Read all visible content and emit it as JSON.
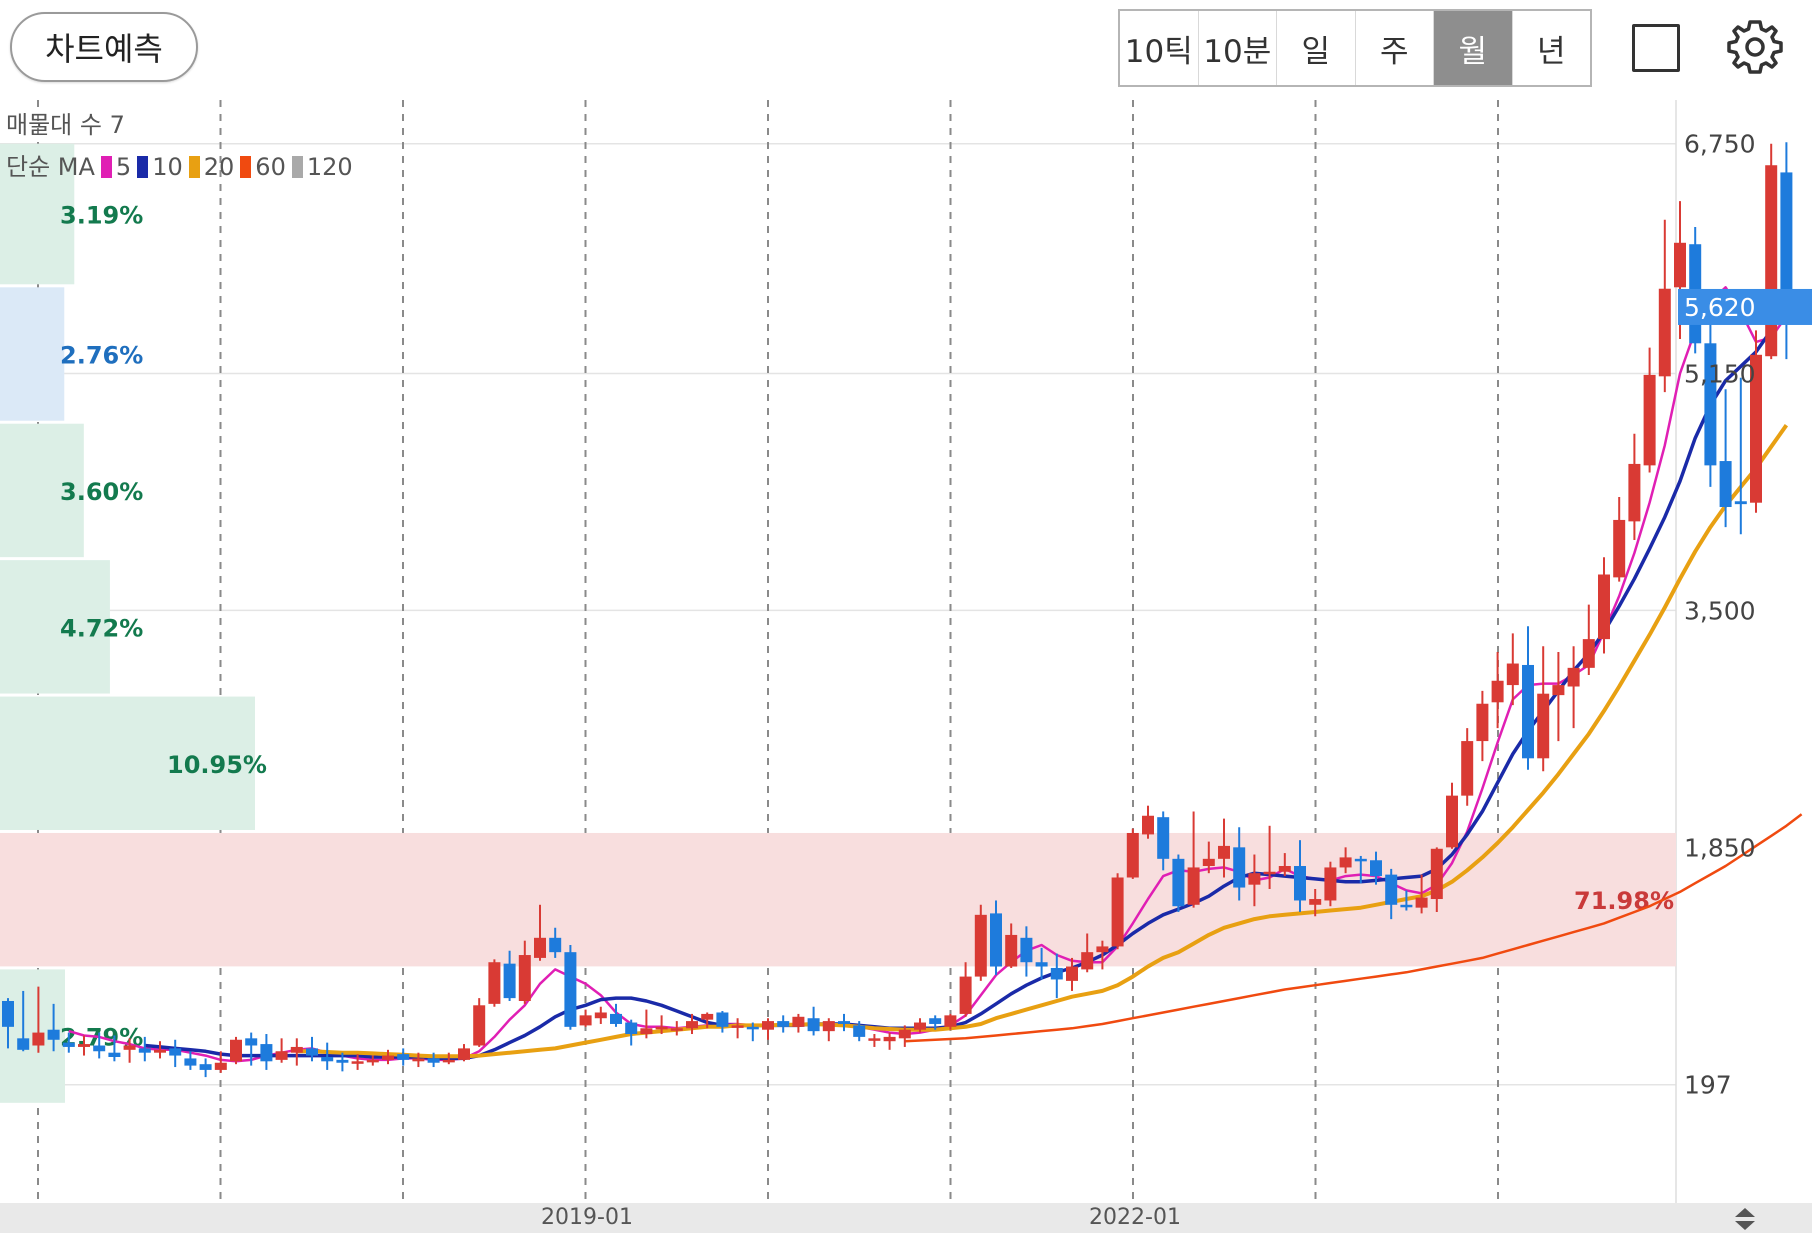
{
  "toolbar": {
    "predict_label": "차트예측",
    "periods": [
      "10틱",
      "10분",
      "일",
      "주",
      "월",
      "년"
    ],
    "active_period": "월"
  },
  "legend": {
    "volume_profile_label": "매물대 수 7",
    "ma_label": "단순 MA",
    "ma_items": [
      {
        "period": "5",
        "color": "#e01fb4"
      },
      {
        "period": "10",
        "color": "#1a2aa8"
      },
      {
        "period": "20",
        "color": "#e8a012"
      },
      {
        "period": "60",
        "color": "#f04a10"
      },
      {
        "period": "120",
        "color": "#a9a9a9"
      }
    ]
  },
  "chart_data": {
    "type": "candlestick",
    "y_axis_ticks": [
      "6,750",
      "5,150",
      "3,500",
      "1,850",
      "197"
    ],
    "y_axis_tick_values": [
      6750,
      5150,
      3500,
      1850,
      197
    ],
    "current_price_label": "5,620",
    "current_price": 5620,
    "x_axis_labels": [
      "2019-01",
      "2022-01"
    ],
    "colors": {
      "up": "#d93a34",
      "down": "#1e7bdc",
      "current_price_bg": "#3a8de6"
    },
    "volume_profile": [
      {
        "price_low": 5750,
        "price_high": 6750,
        "percent": "3.19%",
        "value": 3.19,
        "style": "green"
      },
      {
        "price_low": 4800,
        "price_high": 5750,
        "percent": "2.76%",
        "value": 2.76,
        "style": "blue"
      },
      {
        "price_low": 3850,
        "price_high": 4800,
        "percent": "3.60%",
        "value": 3.6,
        "style": "green"
      },
      {
        "price_low": 2900,
        "price_high": 3850,
        "percent": "4.72%",
        "value": 4.72,
        "style": "green"
      },
      {
        "price_low": 1950,
        "price_high": 2900,
        "percent": "10.95%",
        "value": 10.95,
        "style": "green"
      },
      {
        "price_low": 1000,
        "price_high": 1950,
        "percent": "71.98%",
        "value": 71.98,
        "style": "red"
      },
      {
        "price_low": 50,
        "price_high": 1000,
        "percent": "2.79%",
        "value": 2.79,
        "style": "green"
      }
    ],
    "candles": [
      [
        780,
        600,
        800,
        450
      ],
      [
        520,
        440,
        850,
        430
      ],
      [
        470,
        560,
        880,
        420
      ],
      [
        580,
        510,
        760,
        430
      ],
      [
        490,
        460,
        560,
        420
      ],
      [
        460,
        480,
        540,
        400
      ],
      [
        470,
        430,
        560,
        380
      ],
      [
        420,
        390,
        540,
        360
      ],
      [
        440,
        470,
        520,
        350
      ],
      [
        450,
        420,
        530,
        360
      ],
      [
        420,
        440,
        500,
        380
      ],
      [
        450,
        400,
        510,
        320
      ],
      [
        380,
        330,
        430,
        300
      ],
      [
        340,
        300,
        380,
        250
      ],
      [
        300,
        350,
        430,
        280
      ],
      [
        360,
        510,
        530,
        340
      ],
      [
        520,
        470,
        560,
        330
      ],
      [
        480,
        360,
        550,
        300
      ],
      [
        370,
        430,
        520,
        350
      ],
      [
        420,
        460,
        520,
        330
      ],
      [
        450,
        400,
        530,
        360
      ],
      [
        390,
        360,
        490,
        300
      ],
      [
        370,
        350,
        420,
        290
      ],
      [
        350,
        360,
        410,
        300
      ],
      [
        355,
        370,
        400,
        330
      ],
      [
        370,
        400,
        440,
        340
      ],
      [
        410,
        370,
        450,
        330
      ],
      [
        360,
        380,
        420,
        320
      ],
      [
        380,
        350,
        420,
        320
      ],
      [
        360,
        370,
        420,
        340
      ],
      [
        370,
        450,
        480,
        360
      ],
      [
        470,
        750,
        800,
        460
      ],
      [
        760,
        1050,
        1070,
        740
      ],
      [
        1040,
        800,
        1130,
        780
      ],
      [
        780,
        1100,
        1200,
        760
      ],
      [
        1080,
        1220,
        1450,
        1060
      ],
      [
        1220,
        1120,
        1290,
        1080
      ],
      [
        1120,
        600,
        1170,
        580
      ],
      [
        610,
        680,
        720,
        600
      ],
      [
        660,
        700,
        740,
        620
      ],
      [
        690,
        620,
        760,
        600
      ],
      [
        630,
        550,
        650,
        470
      ],
      [
        550,
        590,
        720,
        520
      ],
      [
        600,
        600,
        680,
        550
      ],
      [
        590,
        590,
        640,
        540
      ],
      [
        590,
        640,
        690,
        550
      ],
      [
        650,
        690,
        700,
        590
      ],
      [
        700,
        600,
        710,
        560
      ],
      [
        610,
        610,
        660,
        520
      ],
      [
        600,
        590,
        630,
        500
      ],
      [
        580,
        640,
        660,
        510
      ],
      [
        640,
        600,
        680,
        560
      ],
      [
        600,
        670,
        690,
        560
      ],
      [
        660,
        570,
        740,
        540
      ],
      [
        570,
        640,
        660,
        500
      ],
      [
        640,
        620,
        690,
        570
      ],
      [
        610,
        530,
        640,
        500
      ],
      [
        520,
        520,
        550,
        460
      ],
      [
        500,
        530,
        560,
        440
      ],
      [
        520,
        580,
        610,
        460
      ],
      [
        580,
        630,
        660,
        560
      ],
      [
        660,
        620,
        680,
        580
      ],
      [
        600,
        680,
        690,
        580
      ],
      [
        690,
        950,
        1050,
        670
      ],
      [
        950,
        1380,
        1450,
        920
      ],
      [
        1390,
        1020,
        1480,
        960
      ],
      [
        1020,
        1240,
        1320,
        1010
      ],
      [
        1220,
        1050,
        1300,
        950
      ],
      [
        1050,
        1020,
        1150,
        930
      ],
      [
        1010,
        930,
        1110,
        800
      ],
      [
        920,
        1020,
        1080,
        850
      ],
      [
        1000,
        1120,
        1250,
        980
      ],
      [
        1120,
        1160,
        1200,
        1000
      ],
      [
        1160,
        1640,
        1670,
        1140
      ],
      [
        1640,
        1950,
        1980,
        1630
      ],
      [
        1940,
        2070,
        2140,
        1910
      ],
      [
        2060,
        1770,
        2100,
        1690
      ],
      [
        1770,
        1440,
        1800,
        1400
      ],
      [
        1450,
        1710,
        2100,
        1430
      ],
      [
        1720,
        1770,
        1890,
        1670
      ],
      [
        1770,
        1860,
        2050,
        1640
      ],
      [
        1850,
        1570,
        1990,
        1480
      ],
      [
        1590,
        1670,
        1800,
        1440
      ],
      [
        1670,
        1680,
        2000,
        1560
      ],
      [
        1680,
        1720,
        1810,
        1650
      ],
      [
        1720,
        1480,
        1900,
        1400
      ],
      [
        1450,
        1490,
        1560,
        1370
      ],
      [
        1480,
        1710,
        1750,
        1440
      ],
      [
        1710,
        1780,
        1850,
        1670
      ],
      [
        1770,
        1760,
        1790,
        1600
      ],
      [
        1760,
        1650,
        1820,
        1590
      ],
      [
        1660,
        1450,
        1700,
        1350
      ],
      [
        1450,
        1440,
        1550,
        1410
      ],
      [
        1430,
        1500,
        1660,
        1390
      ],
      [
        1490,
        1840,
        1850,
        1400
      ],
      [
        1850,
        2210,
        2300,
        1840
      ],
      [
        2210,
        2590,
        2680,
        2140
      ],
      [
        2590,
        2850,
        2940,
        2450
      ],
      [
        2860,
        3010,
        3210,
        2680
      ],
      [
        2980,
        3130,
        3340,
        2840
      ],
      [
        3120,
        2470,
        3390,
        2390
      ],
      [
        2470,
        2920,
        3250,
        2380
      ],
      [
        2910,
        2980,
        3210,
        2590
      ],
      [
        2970,
        3100,
        3250,
        2680
      ],
      [
        3100,
        3300,
        3540,
        3050
      ],
      [
        3300,
        3750,
        3870,
        3200
      ],
      [
        3730,
        4130,
        4290,
        3700
      ],
      [
        4120,
        4520,
        4730,
        3990
      ],
      [
        4510,
        5140,
        5330,
        4460
      ],
      [
        5130,
        5740,
        6220,
        5020
      ],
      [
        5750,
        6060,
        6350,
        5390
      ],
      [
        6050,
        5360,
        6170,
        5290
      ],
      [
        5360,
        4510,
        5590,
        4360
      ],
      [
        4540,
        4220,
        5040,
        4080
      ],
      [
        4260,
        4240,
        5120,
        4030
      ],
      [
        4250,
        5280,
        5450,
        4180
      ],
      [
        5270,
        6600,
        6750,
        5250
      ],
      [
        6550,
        5620,
        6760,
        5250
      ]
    ],
    "ma_series": {
      "5": [
        null,
        null,
        null,
        null,
        570,
        540,
        530,
        500,
        480,
        450,
        440,
        440,
        420,
        400,
        370,
        360,
        370,
        400,
        420,
        440,
        450,
        420,
        400,
        380,
        370,
        370,
        380,
        380,
        370,
        370,
        380,
        430,
        530,
        650,
        750,
        900,
        1000,
        950,
        900,
        820,
        700,
        620,
        600,
        600,
        590,
        600,
        610,
        620,
        620,
        610,
        610,
        610,
        620,
        620,
        620,
        620,
        600,
        580,
        560,
        550,
        560,
        580,
        610,
        680,
        820,
        960,
        1050,
        1130,
        1170,
        1100,
        1060,
        1050,
        1050,
        1160,
        1320,
        1490,
        1650,
        1690,
        1680,
        1700,
        1710,
        1680,
        1620,
        1640,
        1700,
        1650,
        1630,
        1620,
        1650,
        1660,
        1650,
        1600,
        1550,
        1530,
        1590,
        1740,
        1960,
        2260,
        2580,
        2880,
        2980,
        2990,
        2990,
        3050,
        3120,
        3350,
        3600,
        3900,
        4250,
        4650,
        5150,
        5450,
        5650,
        5750,
        5580,
        5370,
        5400,
        5550
      ],
      "10": [
        null,
        null,
        null,
        null,
        null,
        null,
        null,
        null,
        null,
        470,
        460,
        450,
        440,
        430,
        410,
        400,
        400,
        400,
        400,
        400,
        400,
        400,
        400,
        400,
        390,
        390,
        390,
        390,
        380,
        380,
        380,
        400,
        440,
        490,
        540,
        600,
        670,
        720,
        750,
        790,
        800,
        800,
        780,
        750,
        710,
        670,
        630,
        610,
        610,
        610,
        610,
        610,
        610,
        620,
        620,
        620,
        610,
        600,
        590,
        590,
        590,
        590,
        600,
        630,
        690,
        760,
        830,
        890,
        940,
        980,
        1010,
        1050,
        1100,
        1170,
        1250,
        1320,
        1380,
        1420,
        1460,
        1510,
        1580,
        1640,
        1670,
        1660,
        1650,
        1640,
        1630,
        1620,
        1610,
        1610,
        1620,
        1630,
        1640,
        1650,
        1700,
        1800,
        1940,
        2100,
        2300,
        2500,
        2660,
        2800,
        2940,
        3080,
        3200,
        3350,
        3530,
        3720,
        3930,
        4150,
        4400,
        4700,
        4930,
        5100,
        5200,
        5300,
        5450,
        5650
      ],
      "20": [
        null,
        null,
        null,
        null,
        null,
        null,
        null,
        null,
        null,
        null,
        null,
        null,
        null,
        null,
        null,
        null,
        null,
        null,
        null,
        430,
        430,
        425,
        420,
        420,
        415,
        410,
        405,
        400,
        395,
        395,
        395,
        400,
        410,
        420,
        430,
        440,
        450,
        470,
        490,
        510,
        530,
        550,
        560,
        570,
        580,
        590,
        600,
        600,
        610,
        610,
        610,
        615,
        615,
        620,
        615,
        610,
        600,
        590,
        585,
        580,
        580,
        580,
        590,
        600,
        620,
        660,
        690,
        720,
        750,
        780,
        810,
        830,
        850,
        890,
        950,
        1020,
        1080,
        1120,
        1180,
        1240,
        1290,
        1320,
        1350,
        1370,
        1380,
        1390,
        1400,
        1410,
        1420,
        1430,
        1450,
        1470,
        1490,
        1510,
        1550,
        1610,
        1690,
        1780,
        1880,
        1990,
        2110,
        2230,
        2360,
        2500,
        2640,
        2800,
        2970,
        3150,
        3330,
        3520,
        3720,
        3910,
        4080,
        4230,
        4360,
        4490,
        4640,
        4790
      ],
      "60": [
        null,
        null,
        null,
        null,
        null,
        null,
        null,
        null,
        null,
        null,
        null,
        null,
        null,
        null,
        null,
        null,
        null,
        null,
        null,
        null,
        null,
        null,
        null,
        null,
        null,
        null,
        null,
        null,
        null,
        null,
        null,
        null,
        null,
        null,
        null,
        null,
        null,
        null,
        null,
        null,
        null,
        null,
        null,
        null,
        null,
        null,
        null,
        null,
        null,
        null,
        null,
        null,
        null,
        null,
        null,
        null,
        null,
        null,
        null,
        500,
        505,
        510,
        515,
        520,
        530,
        540,
        550,
        560,
        570,
        580,
        590,
        605,
        620,
        640,
        660,
        680,
        700,
        720,
        740,
        760,
        780,
        800,
        820,
        840,
        860,
        875,
        890,
        905,
        920,
        935,
        950,
        965,
        980,
        1000,
        1020,
        1040,
        1060,
        1080,
        1110,
        1140,
        1170,
        1200,
        1230,
        1260,
        1290,
        1320,
        1360,
        1400,
        1440,
        1490,
        1540,
        1600,
        1660,
        1720,
        1790,
        1860,
        1930,
        2000,
        2080
      ],
      "120": []
    }
  }
}
